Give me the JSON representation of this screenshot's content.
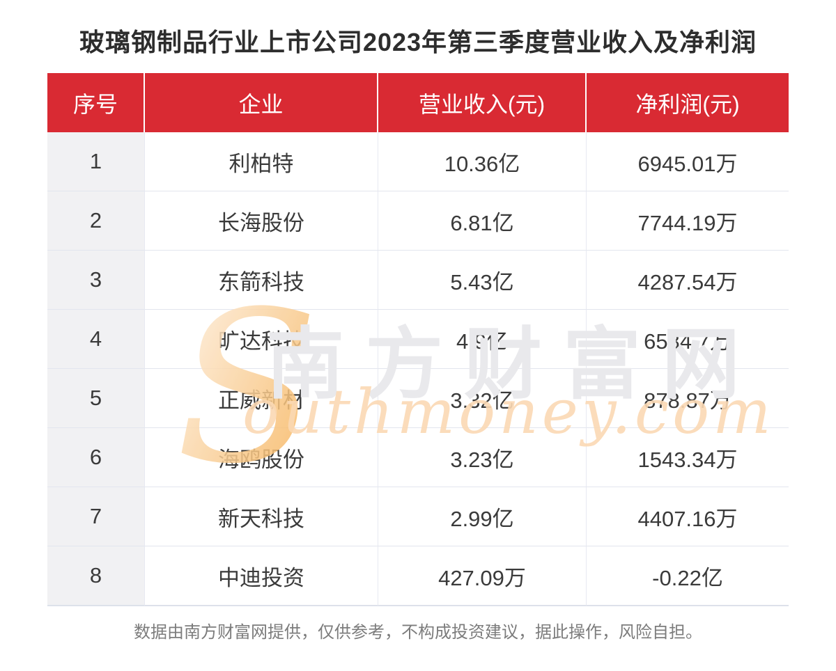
{
  "title": "玻璃钢制品行业上市公司2023年第三季度营业收入及净利润",
  "chart_data": {
    "type": "table",
    "title": "玻璃钢制品行业上市公司2023年第三季度营业收入及净利润",
    "columns": [
      "序号",
      "企业",
      "营业收入(元)",
      "净利润(元)"
    ],
    "rows": [
      [
        "1",
        "利柏特",
        "10.36亿",
        "6945.01万"
      ],
      [
        "2",
        "长海股份",
        "6.81亿",
        "7744.19万"
      ],
      [
        "3",
        "东箭科技",
        "5.43亿",
        "4287.54万"
      ],
      [
        "4",
        "旷达科技",
        "4.9亿",
        "6584.7万"
      ],
      [
        "5",
        "正威新材",
        "3.32亿",
        "878.87万"
      ],
      [
        "6",
        "海鸥股份",
        "3.23亿",
        "1543.34万"
      ],
      [
        "7",
        "新天科技",
        "2.99亿",
        "4407.16万"
      ],
      [
        "8",
        "中迪投资",
        "427.09万",
        "-0.22亿"
      ]
    ]
  },
  "footer": "数据由南方财富网提供，仅供参考，不构成投资建议，据此操作，风险自担。",
  "watermark": {
    "initial": "S",
    "cn": "南方财富网",
    "en": "outhmoney.com"
  },
  "colors": {
    "header_bg": "#d92a33",
    "header_text": "#ffffff",
    "index_col_bg": "#f1f1f3",
    "row_divider": "#e2e5ee",
    "body_text": "#3a3a3a",
    "title_text": "#2d2d2d",
    "footer_text": "#7c7c7c",
    "watermark_orange": "#f7b966",
    "watermark_peach": "#fbd9b4",
    "watermark_gray": "#e9e9ec"
  }
}
